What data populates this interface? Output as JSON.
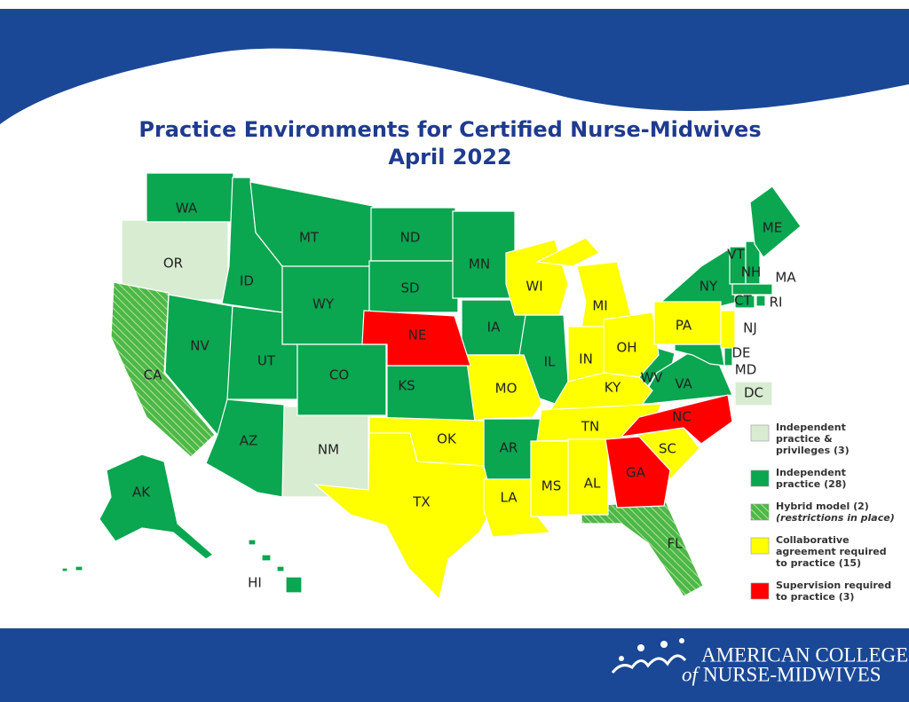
{
  "header": {
    "title": "Practice Environments for Certified Nurse-Midwives",
    "subtitle": "April 2022"
  },
  "legend": {
    "items": [
      {
        "lines": [
          "Independent",
          "practice &",
          "privileges (3)"
        ],
        "color": "#d8ecd2",
        "states": [
          "OR",
          "NM",
          "DC"
        ]
      },
      {
        "lines": [
          "Independent",
          "practice (28)"
        ],
        "color": "#0aa650",
        "states": [
          "WA",
          "ID",
          "MT",
          "WY",
          "NV",
          "UT",
          "CO",
          "AZ",
          "ND",
          "SD",
          "KS",
          "MN",
          "IA",
          "AR",
          "IL",
          "WV",
          "VA",
          "MD",
          "DE",
          "NY",
          "VT",
          "NH",
          "ME",
          "MA",
          "CT",
          "RI",
          "AK",
          "HI"
        ]
      },
      {
        "lines": [
          "Hybrid model (2)"
        ],
        "note": "(restrictions in place)",
        "color": "#4cb848",
        "hatched": true,
        "states": [
          "CA",
          "FL"
        ]
      },
      {
        "lines": [
          "Collaborative",
          "agreement required",
          "to practice (15)"
        ],
        "color": "#ffff00",
        "states": [
          "WI",
          "MI",
          "OH",
          "IN",
          "KY",
          "TN",
          "MO",
          "OK",
          "TX",
          "LA",
          "MS",
          "AL",
          "SC",
          "PA",
          "NJ"
        ]
      },
      {
        "lines": [
          "Supervision required",
          "to practice (3)"
        ],
        "color": "#ff0000",
        "states": [
          "NE",
          "GA",
          "NC"
        ]
      }
    ]
  },
  "footer": {
    "org_line1": "AMERICAN COLLEGE",
    "org_of": "of",
    "org_line2": "NURSE-MIDWIVES"
  }
}
